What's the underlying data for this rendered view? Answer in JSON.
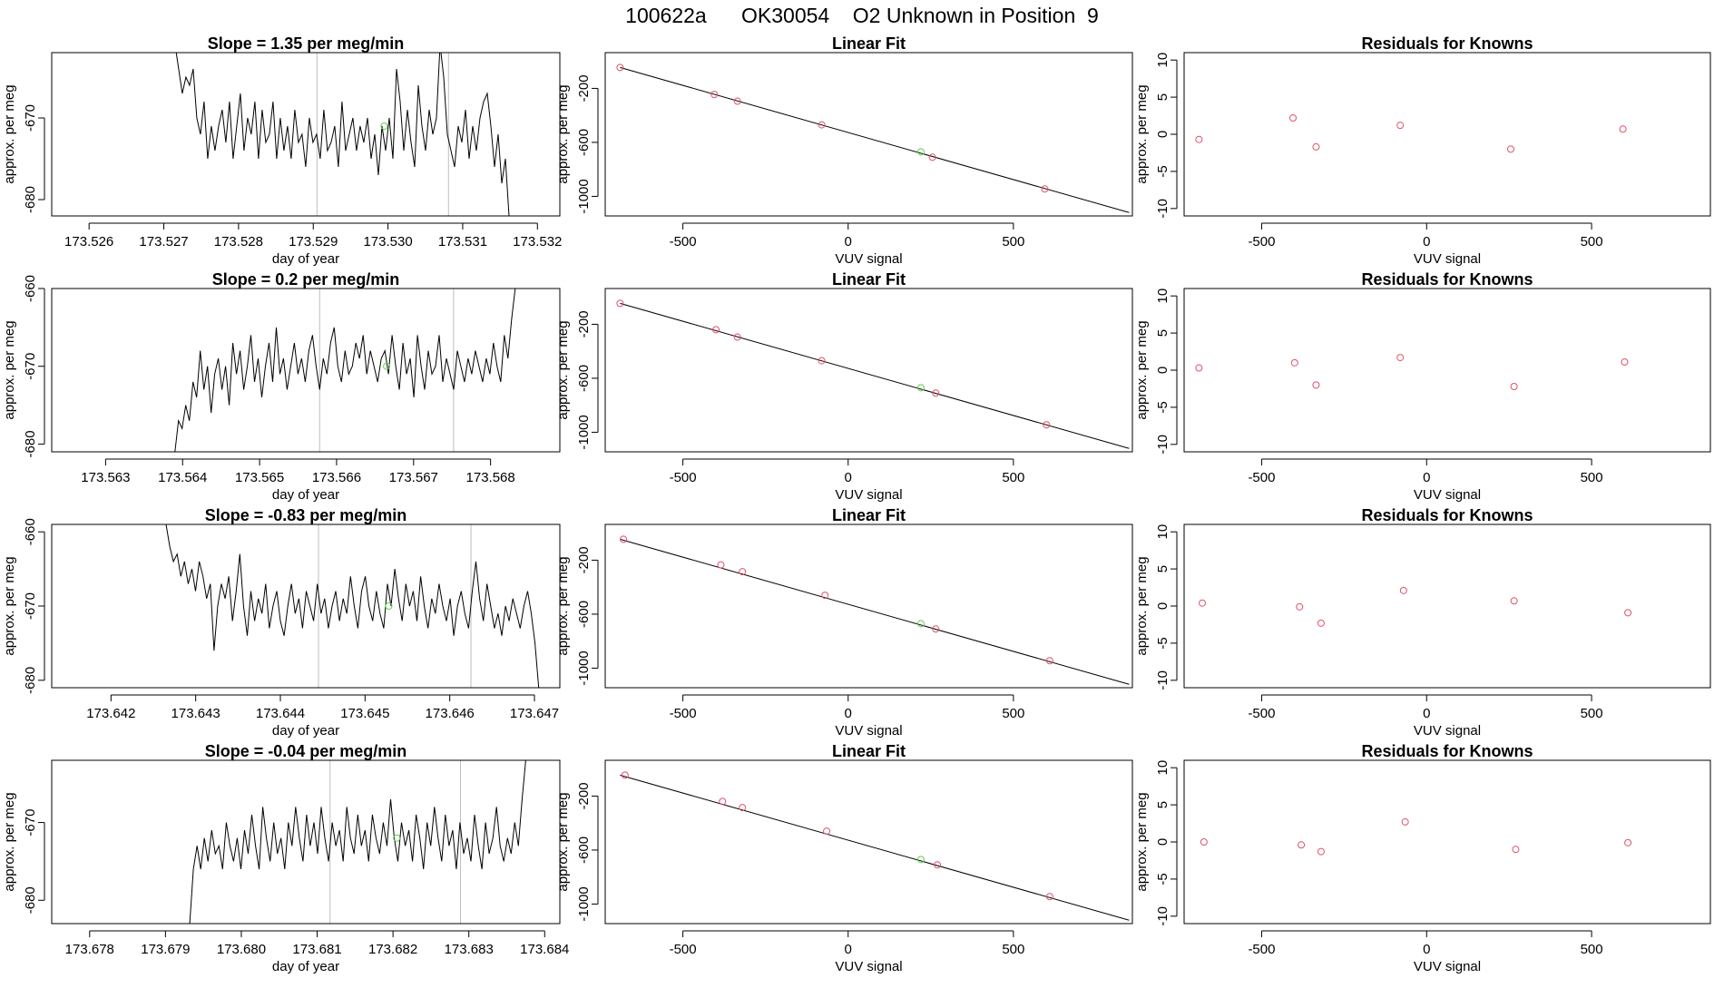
{
  "figure": {
    "title": "100622a      OK30054    O2 Unknown in Position  9"
  },
  "chart_data": [
    {
      "type": "line",
      "row": 0,
      "col": 0,
      "title": "Slope =  1.35  per meg/min",
      "xlabel": "day of year",
      "ylabel": "approx. per meg",
      "xlim": [
        173.5255,
        173.5323
      ],
      "ylim": [
        -682,
        -662
      ],
      "xticks": [
        173.526,
        173.527,
        173.528,
        173.529,
        173.53,
        173.531,
        173.532
      ],
      "xticklabels": [
        "173.526",
        "173.527",
        "173.528",
        "173.529",
        "173.530",
        "173.531",
        "173.532"
      ],
      "yticks": [
        -670,
        -680
      ],
      "yticklabels": [
        "-670",
        "-680"
      ],
      "vlines": [
        173.52905,
        173.53081
      ],
      "green_point": {
        "x": 173.52995,
        "y": -671
      },
      "series": [
        {
          "x0": 173.52715,
          "x1": 173.53162,
          "y": [
            -661,
            -664,
            -667,
            -665,
            -666,
            -664,
            -670,
            -672,
            -668,
            -675,
            -671,
            -674,
            -671,
            -669,
            -673,
            -668,
            -675,
            -671,
            -667,
            -674,
            -670,
            -672,
            -668,
            -675,
            -669,
            -673,
            -672,
            -668,
            -675,
            -670,
            -674,
            -671,
            -675,
            -669,
            -673,
            -672,
            -676,
            -670,
            -673,
            -672,
            -675,
            -669,
            -674,
            -673,
            -671,
            -676,
            -668,
            -674,
            -672,
            -670,
            -674,
            -671,
            -673,
            -670,
            -675,
            -672,
            -677,
            -671,
            -674,
            -670,
            -675,
            -664,
            -668,
            -674,
            -669,
            -673,
            -676,
            -666,
            -671,
            -674,
            -669,
            -672,
            -670,
            -661,
            -665,
            -672,
            -674,
            -676,
            -671,
            -673,
            -669,
            -675,
            -671,
            -674,
            -670,
            -668,
            -667,
            -671,
            -676,
            -672,
            -678,
            -675,
            -682
          ]
        }
      ]
    },
    {
      "type": "scatter",
      "row": 0,
      "col": 1,
      "title": "Linear Fit",
      "xlabel": "VUV signal",
      "ylabel": "approx. per meg",
      "xlim": [
        -735,
        860
      ],
      "ylim": [
        -1145,
        65
      ],
      "xticks": [
        -500,
        0,
        500
      ],
      "xticklabels": [
        "-500",
        "0",
        "500"
      ],
      "yticks": [
        -200,
        -600,
        -1000
      ],
      "yticklabels": [
        "-200",
        "-600",
        "-1000"
      ],
      "fit_line": {
        "x": [
          -690,
          850
        ],
        "y": [
          -45,
          -1120
        ]
      },
      "knowns": {
        "x": [
          -690,
          -405,
          -335,
          -80,
          255,
          595
        ],
        "y": [
          -45,
          -245,
          -295,
          -470,
          -710,
          -945
        ]
      },
      "unknown": {
        "x": 220,
        "y": -670
      }
    },
    {
      "type": "scatter",
      "row": 0,
      "col": 2,
      "title": "Residuals for Knowns",
      "xlabel": "VUV signal",
      "ylabel": "approx. per meg",
      "xlim": [
        -735,
        860
      ],
      "ylim": [
        -11,
        11
      ],
      "xticks": [
        -500,
        0,
        500
      ],
      "xticklabels": [
        "-500",
        "0",
        "500"
      ],
      "yticks": [
        10,
        5,
        0,
        -5,
        -10
      ],
      "yticklabels": [
        "10",
        "5",
        "0",
        "-5",
        "-10"
      ],
      "points": {
        "x": [
          -690,
          -405,
          -335,
          -80,
          255,
          595
        ],
        "y": [
          -0.7,
          2.2,
          -1.7,
          1.2,
          -2.0,
          0.7
        ]
      }
    },
    {
      "type": "line",
      "row": 1,
      "col": 0,
      "title": "Slope =  0.2  per meg/min",
      "xlabel": "day of year",
      "ylabel": "approx. per meg",
      "xlim": [
        173.5623,
        173.5689
      ],
      "ylim": [
        -681,
        -660
      ],
      "xticks": [
        173.563,
        173.564,
        173.565,
        173.566,
        173.567,
        173.568
      ],
      "xticklabels": [
        "173.563",
        "173.564",
        "173.565",
        "173.566",
        "173.567",
        "173.568"
      ],
      "yticks": [
        -660,
        -670,
        -680
      ],
      "yticklabels": [
        "-660",
        "-670",
        "-680"
      ],
      "vlines": [
        173.56578,
        173.56752
      ],
      "green_point": {
        "x": 173.56665,
        "y": -670
      },
      "series": [
        {
          "x0": 173.5639,
          "x1": 173.56832,
          "y": [
            -681,
            -677,
            -678,
            -675,
            -677,
            -672,
            -674,
            -668,
            -673,
            -670,
            -676,
            -671,
            -669,
            -673,
            -670,
            -675,
            -667,
            -671,
            -668,
            -673,
            -670,
            -666,
            -672,
            -669,
            -674,
            -670,
            -667,
            -672,
            -665,
            -671,
            -669,
            -673,
            -670,
            -667,
            -671,
            -669,
            -672,
            -668,
            -666,
            -670,
            -673,
            -669,
            -671,
            -667,
            -665,
            -670,
            -672,
            -668,
            -671,
            -670,
            -667,
            -669,
            -666,
            -671,
            -668,
            -670,
            -672,
            -669,
            -668,
            -671,
            -666,
            -670,
            -673,
            -667,
            -671,
            -669,
            -674,
            -666,
            -670,
            -673,
            -668,
            -671,
            -670,
            -666,
            -672,
            -669,
            -671,
            -673,
            -668,
            -670,
            -672,
            -669,
            -671,
            -668,
            -670,
            -672,
            -669,
            -671,
            -667,
            -670,
            -672,
            -666,
            -669,
            -664,
            -660
          ]
        }
      ]
    },
    {
      "type": "scatter",
      "row": 1,
      "col": 1,
      "title": "Linear Fit",
      "xlabel": "VUV signal",
      "ylabel": "approx. per meg",
      "xlim": [
        -735,
        860
      ],
      "ylim": [
        -1145,
        65
      ],
      "xticks": [
        -500,
        0,
        500
      ],
      "xticklabels": [
        "-500",
        "0",
        "500"
      ],
      "yticks": [
        -200,
        -600,
        -1000
      ],
      "yticklabels": [
        "-200",
        "-600",
        "-1000"
      ],
      "fit_line": {
        "x": [
          -690,
          850
        ],
        "y": [
          -45,
          -1120
        ]
      },
      "knowns": {
        "x": [
          -690,
          -400,
          -335,
          -80,
          265,
          600
        ],
        "y": [
          -45,
          -240,
          -295,
          -470,
          -710,
          -945
        ]
      },
      "unknown": {
        "x": 220,
        "y": -670
      }
    },
    {
      "type": "scatter",
      "row": 1,
      "col": 2,
      "title": "Residuals for Knowns",
      "xlabel": "VUV signal",
      "ylabel": "approx. per meg",
      "xlim": [
        -735,
        860
      ],
      "ylim": [
        -11,
        11
      ],
      "xticks": [
        -500,
        0,
        500
      ],
      "xticklabels": [
        "-500",
        "0",
        "500"
      ],
      "yticks": [
        10,
        5,
        0,
        -5,
        -10
      ],
      "yticklabels": [
        "10",
        "5",
        "0",
        "-5",
        "-10"
      ],
      "points": {
        "x": [
          -690,
          -400,
          -335,
          -80,
          265,
          600
        ],
        "y": [
          0.3,
          1.0,
          -2.0,
          1.7,
          -2.2,
          1.1
        ]
      }
    },
    {
      "type": "line",
      "row": 2,
      "col": 0,
      "title": "Slope =  -0.83  per meg/min",
      "xlabel": "day of year",
      "ylabel": "approx. per meg",
      "xlim": [
        173.6413,
        173.6473
      ],
      "ylim": [
        -681,
        -659
      ],
      "xticks": [
        173.642,
        173.643,
        173.644,
        173.645,
        173.646,
        173.647
      ],
      "xticklabels": [
        "173.642",
        "173.643",
        "173.644",
        "173.645",
        "173.646",
        "173.647"
      ],
      "yticks": [
        -660,
        -670,
        -680
      ],
      "yticklabels": [
        "-660",
        "-670",
        "-680"
      ],
      "vlines": [
        173.64445,
        173.64625
      ],
      "green_point": {
        "x": 173.64528,
        "y": -670
      },
      "series": [
        {
          "x0": 173.64265,
          "x1": 173.64705,
          "y": [
            -659,
            -662,
            -664,
            -663,
            -666,
            -664,
            -667,
            -665,
            -668,
            -664,
            -666,
            -669,
            -667,
            -676,
            -670,
            -667,
            -669,
            -666,
            -672,
            -668,
            -663,
            -670,
            -674,
            -668,
            -672,
            -669,
            -671,
            -667,
            -673,
            -670,
            -668,
            -672,
            -674,
            -670,
            -667,
            -671,
            -669,
            -673,
            -668,
            -670,
            -672,
            -667,
            -671,
            -669,
            -673,
            -670,
            -668,
            -672,
            -669,
            -671,
            -666,
            -670,
            -673,
            -668,
            -666,
            -670,
            -672,
            -668,
            -671,
            -673,
            -667,
            -670,
            -665,
            -669,
            -672,
            -667,
            -670,
            -668,
            -672,
            -666,
            -670,
            -673,
            -669,
            -671,
            -667,
            -670,
            -672,
            -669,
            -674,
            -670,
            -668,
            -671,
            -673,
            -668,
            -664,
            -669,
            -672,
            -667,
            -670,
            -673,
            -671,
            -674,
            -670,
            -672,
            -669,
            -671,
            -673,
            -670,
            -668,
            -671,
            -675,
            -681
          ]
        }
      ]
    },
    {
      "type": "scatter",
      "row": 2,
      "col": 1,
      "title": "Linear Fit",
      "xlabel": "VUV signal",
      "ylabel": "approx. per meg",
      "xlim": [
        -735,
        860
      ],
      "ylim": [
        -1145,
        65
      ],
      "xticks": [
        -500,
        0,
        500
      ],
      "xticklabels": [
        "-500",
        "0",
        "500"
      ],
      "yticks": [
        -200,
        -600,
        -1000
      ],
      "yticklabels": [
        "-200",
        "-600",
        "-1000"
      ],
      "fit_line": {
        "x": [
          -690,
          850
        ],
        "y": [
          -45,
          -1120
        ]
      },
      "knowns": {
        "x": [
          -680,
          -385,
          -320,
          -70,
          265,
          610
        ],
        "y": [
          -45,
          -235,
          -285,
          -460,
          -710,
          -945
        ]
      },
      "unknown": {
        "x": 220,
        "y": -670
      }
    },
    {
      "type": "scatter",
      "row": 2,
      "col": 2,
      "title": "Residuals for Knowns",
      "xlabel": "VUV signal",
      "ylabel": "approx. per meg",
      "xlim": [
        -735,
        860
      ],
      "ylim": [
        -11,
        11
      ],
      "xticks": [
        -500,
        0,
        500
      ],
      "xticklabels": [
        "-500",
        "0",
        "500"
      ],
      "yticks": [
        10,
        5,
        0,
        -5,
        -10
      ],
      "yticklabels": [
        "10",
        "5",
        "0",
        "-5",
        "-10"
      ],
      "points": {
        "x": [
          -680,
          -385,
          -320,
          -70,
          265,
          610
        ],
        "y": [
          0.4,
          -0.1,
          -2.3,
          2.1,
          0.7,
          -0.9
        ]
      }
    },
    {
      "type": "line",
      "row": 3,
      "col": 0,
      "title": "Slope =  -0.04  per meg/min",
      "xlabel": "day of year",
      "ylabel": "approx. per meg",
      "xlim": [
        173.6775,
        173.6842
      ],
      "ylim": [
        -683,
        -662
      ],
      "xticks": [
        173.678,
        173.679,
        173.68,
        173.681,
        173.682,
        173.683,
        173.684
      ],
      "xticklabels": [
        "173.678",
        "173.679",
        "173.680",
        "173.681",
        "173.682",
        "173.683",
        "173.684"
      ],
      "yticks": [
        -670,
        -680
      ],
      "yticklabels": [
        "-670",
        "-680"
      ],
      "vlines": [
        173.68117,
        173.68289
      ],
      "green_point": {
        "x": 173.68205,
        "y": -672
      },
      "series": [
        {
          "x0": 173.67932,
          "x1": 173.68375,
          "y": [
            -683,
            -676,
            -673,
            -676,
            -672,
            -675,
            -671,
            -674,
            -673,
            -676,
            -670,
            -673,
            -675,
            -672,
            -676,
            -671,
            -674,
            -669,
            -673,
            -676,
            -668,
            -672,
            -675,
            -670,
            -674,
            -672,
            -676,
            -670,
            -673,
            -668,
            -672,
            -675,
            -669,
            -673,
            -670,
            -674,
            -668,
            -672,
            -675,
            -670,
            -673,
            -671,
            -675,
            -668,
            -672,
            -674,
            -669,
            -673,
            -671,
            -675,
            -669,
            -672,
            -674,
            -670,
            -673,
            -667,
            -672,
            -675,
            -670,
            -673,
            -671,
            -675,
            -669,
            -672,
            -676,
            -670,
            -673,
            -668,
            -672,
            -675,
            -669,
            -673,
            -671,
            -676,
            -670,
            -674,
            -672,
            -675,
            -669,
            -673,
            -676,
            -670,
            -674,
            -672,
            -668,
            -673,
            -675,
            -672,
            -674,
            -670,
            -673,
            -667,
            -662
          ]
        }
      ]
    },
    {
      "type": "scatter",
      "row": 3,
      "col": 1,
      "title": "Linear Fit",
      "xlabel": "VUV signal",
      "ylabel": "approx. per meg",
      "xlim": [
        -735,
        860
      ],
      "ylim": [
        -1145,
        65
      ],
      "xticks": [
        -500,
        0,
        500
      ],
      "xticklabels": [
        "-500",
        "0",
        "500"
      ],
      "yticks": [
        -200,
        -600,
        -1000
      ],
      "yticklabels": [
        "-200",
        "-600",
        "-1000"
      ],
      "fit_line": {
        "x": [
          -690,
          850
        ],
        "y": [
          -45,
          -1120
        ]
      },
      "knowns": {
        "x": [
          -675,
          -380,
          -320,
          -65,
          270,
          610
        ],
        "y": [
          -45,
          -240,
          -285,
          -460,
          -710,
          -945
        ]
      },
      "unknown": {
        "x": 220,
        "y": -670
      }
    },
    {
      "type": "scatter",
      "row": 3,
      "col": 2,
      "title": "Residuals for Knowns",
      "xlabel": "VUV signal",
      "ylabel": "approx. per meg",
      "xlim": [
        -735,
        860
      ],
      "ylim": [
        -11,
        11
      ],
      "xticks": [
        -500,
        0,
        500
      ],
      "xticklabels": [
        "-500",
        "0",
        "500"
      ],
      "points": {
        "x": [
          -675,
          -380,
          -320,
          -65,
          270,
          610
        ],
        "y": [
          0.0,
          -0.4,
          -1.3,
          2.7,
          -1.0,
          -0.1
        ]
      },
      "yticks": [
        10,
        5,
        0,
        -5,
        -10
      ],
      "yticklabels": [
        "10",
        "5",
        "0",
        "-5",
        "-10"
      ]
    }
  ],
  "colors": {
    "line": "#000000",
    "box": "#000000",
    "vline": "#bebebe",
    "known_point": "#df536b",
    "unknown_point": "#61d04f"
  }
}
